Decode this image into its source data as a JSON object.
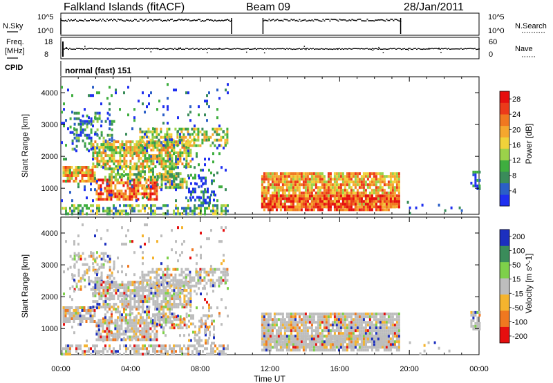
{
  "header": {
    "station": "Falkland Islands (fitACF)",
    "beam": "Beam 09",
    "date": "28/Jan/2011"
  },
  "noise_panel": {
    "left_label": "N.Sky",
    "left_ticks": [
      "10^5",
      "10^0"
    ],
    "right_label": "N.Search",
    "right_ticks": [
      "10^5",
      "10^0"
    ]
  },
  "freq_panel": {
    "left_label_line1": "Freq.",
    "left_label_line2": "[MHz]",
    "left_ticks": [
      "18",
      "8"
    ],
    "right_label": "Nave",
    "right_ticks": [
      "60",
      "0"
    ]
  },
  "cpid": {
    "label": "CPID",
    "value": "normal (fast) 151"
  },
  "colors": {
    "power": [
      "#1f2ff0",
      "#2b5fc7",
      "#3a8c5a",
      "#3fae3f",
      "#9bd14a",
      "#f0d23a",
      "#f5a72e",
      "#f07820",
      "#ec3a1a",
      "#e60f0f"
    ],
    "velocity": [
      "#e60f0f",
      "#f07820",
      "#f5b42e",
      "#bdbdbd",
      "#7ed04a",
      "#3a8c5a",
      "#1c2fbf"
    ]
  },
  "chart_data": [
    {
      "type": "heatmap",
      "quantity": "power",
      "xlabel": "",
      "ylabel": "Slant Range [km]",
      "xlim": [
        "00:00",
        "00:00"
      ],
      "ylim": [
        180,
        4500
      ],
      "y_ticks": [
        "1000",
        "2000",
        "3000",
        "4000"
      ],
      "colorbar": {
        "label": "Power [dB]",
        "ticks": [
          "4",
          "8",
          "12",
          "16",
          "20",
          "24",
          "28"
        ],
        "range": [
          0,
          30
        ]
      }
    },
    {
      "type": "heatmap",
      "quantity": "velocity",
      "xlabel": "Time UT",
      "ylabel": "Slant Range [km]",
      "x_ticks": [
        "00:00",
        "04:00",
        "08:00",
        "12:00",
        "16:00",
        "20:00",
        "00:00"
      ],
      "ylim": [
        180,
        4500
      ],
      "y_ticks": [
        "1000",
        "2000",
        "3000",
        "4000"
      ],
      "colorbar": {
        "label": "Velocity [m s^-1]",
        "ticks": [
          "200",
          "100",
          "50",
          "15",
          "-15",
          "-50",
          "-100",
          "-200"
        ]
      }
    }
  ]
}
